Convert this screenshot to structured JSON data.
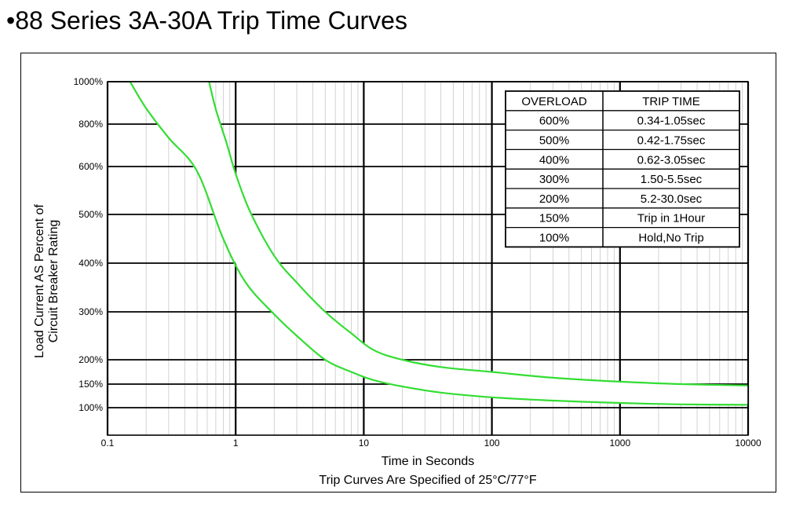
{
  "slide_title": "•88 Series 3A-30A Trip Time Curves",
  "colors": {
    "curve": "#33dd33",
    "grid": "#000000"
  },
  "chart_data": {
    "type": "line",
    "title": "",
    "xlabel": "Time in Seconds",
    "subcaption": "Trip Curves Are Specified of 25°C/77°F",
    "ylabel_lines": [
      "Load Current AS Percent of",
      "Circuit Breaker Rating"
    ],
    "x_scale": "log",
    "xlim": [
      0.1,
      10000
    ],
    "x_ticks": [
      {
        "value": 0.1,
        "label": "0.1"
      },
      {
        "value": 1,
        "label": "1"
      },
      {
        "value": 10,
        "label": "10"
      },
      {
        "value": 100,
        "label": "100"
      },
      {
        "value": 1000,
        "label": "1000"
      },
      {
        "value": 10000,
        "label": "10000"
      }
    ],
    "y_ticks": [
      {
        "value": 100,
        "label": "100%"
      },
      {
        "value": 150,
        "label": "150%"
      },
      {
        "value": 200,
        "label": "200%"
      },
      {
        "value": 300,
        "label": "300%"
      },
      {
        "value": 400,
        "label": "400%"
      },
      {
        "value": 500,
        "label": "500%"
      },
      {
        "value": 600,
        "label": "600%"
      },
      {
        "value": 800,
        "label": "800%"
      },
      {
        "value": 1000,
        "label": "1000%"
      }
    ],
    "grid": true,
    "series": [
      {
        "x": [
          0.15,
          0.2,
          0.3,
          0.5,
          0.8,
          1.2,
          2,
          3,
          5,
          8,
          12,
          20,
          40,
          100,
          300,
          1000,
          3000,
          10000
        ],
        "y": [
          1000,
          875,
          735,
          590,
          450,
          360,
          295,
          250,
          200,
          175,
          158,
          145,
          132,
          122,
          115,
          110,
          107,
          106
        ]
      },
      {
        "x": [
          0.62,
          0.7,
          0.85,
          1,
          1.3,
          2,
          3,
          5,
          8,
          12,
          20,
          40,
          100,
          300,
          1000,
          3000,
          10000
        ],
        "y": [
          1000,
          870,
          710,
          585,
          505,
          415,
          360,
          300,
          255,
          220,
          200,
          185,
          175,
          163,
          155,
          150,
          147
        ]
      }
    ],
    "table": {
      "headers": [
        "OVERLOAD",
        "TRIP TIME"
      ],
      "rows": [
        [
          "600%",
          "0.34-1.05sec"
        ],
        [
          "500%",
          "0.42-1.75sec"
        ],
        [
          "400%",
          "0.62-3.05sec"
        ],
        [
          "300%",
          "1.50-5.5sec"
        ],
        [
          "200%",
          "5.2-30.0sec"
        ],
        [
          "150%",
          "Trip in 1Hour"
        ],
        [
          "100%",
          "Hold,No Trip"
        ]
      ]
    }
  }
}
